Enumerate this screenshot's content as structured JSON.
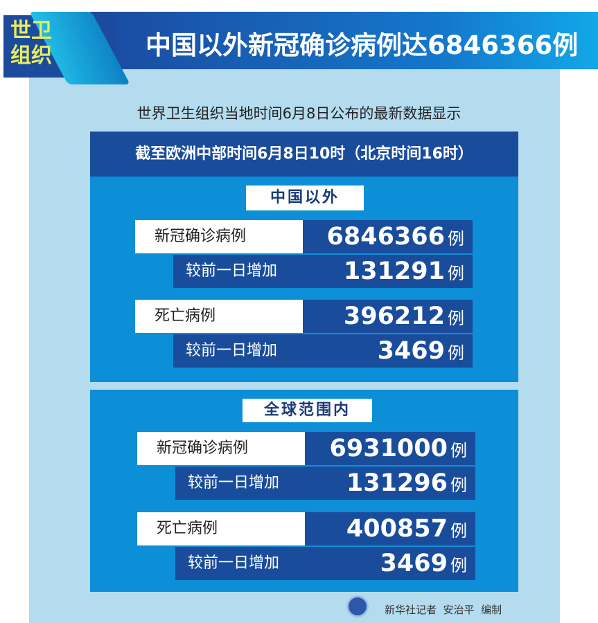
{
  "header": {
    "tag": "世卫组织",
    "title": "中国以外新冠确诊病例达6846366例"
  },
  "subtitle": "世界卫生组织当地时间6月8日公布的最新数据显示",
  "band": "截至欧洲中部时间6月8日10时（北京时间16时）",
  "sections": [
    {
      "title": "中国以外",
      "confirmed_label": "新冠确诊病例",
      "confirmed": "6846366",
      "confirmed_inc_label": "较前一日增加",
      "confirmed_inc": "131291",
      "deaths_label": "死亡病例",
      "deaths": "396212",
      "deaths_inc_label": "较前一日增加",
      "deaths_inc": "3469"
    },
    {
      "title": "全球范围内",
      "confirmed_label": "新冠确诊病例",
      "confirmed": "6931000",
      "confirmed_inc_label": "较前一日增加",
      "confirmed_inc": "131296",
      "deaths_label": "死亡病例",
      "deaths": "400857",
      "deaths_inc_label": "较前一日增加",
      "deaths_inc": "3469"
    }
  ],
  "unit": "例",
  "footer": "新华社记者  安治平  编制",
  "colors": {
    "panel": "#0c8fd6",
    "dark": "#1a4c9c",
    "background": "#b4dcee",
    "tag": "#e8ec5a"
  }
}
